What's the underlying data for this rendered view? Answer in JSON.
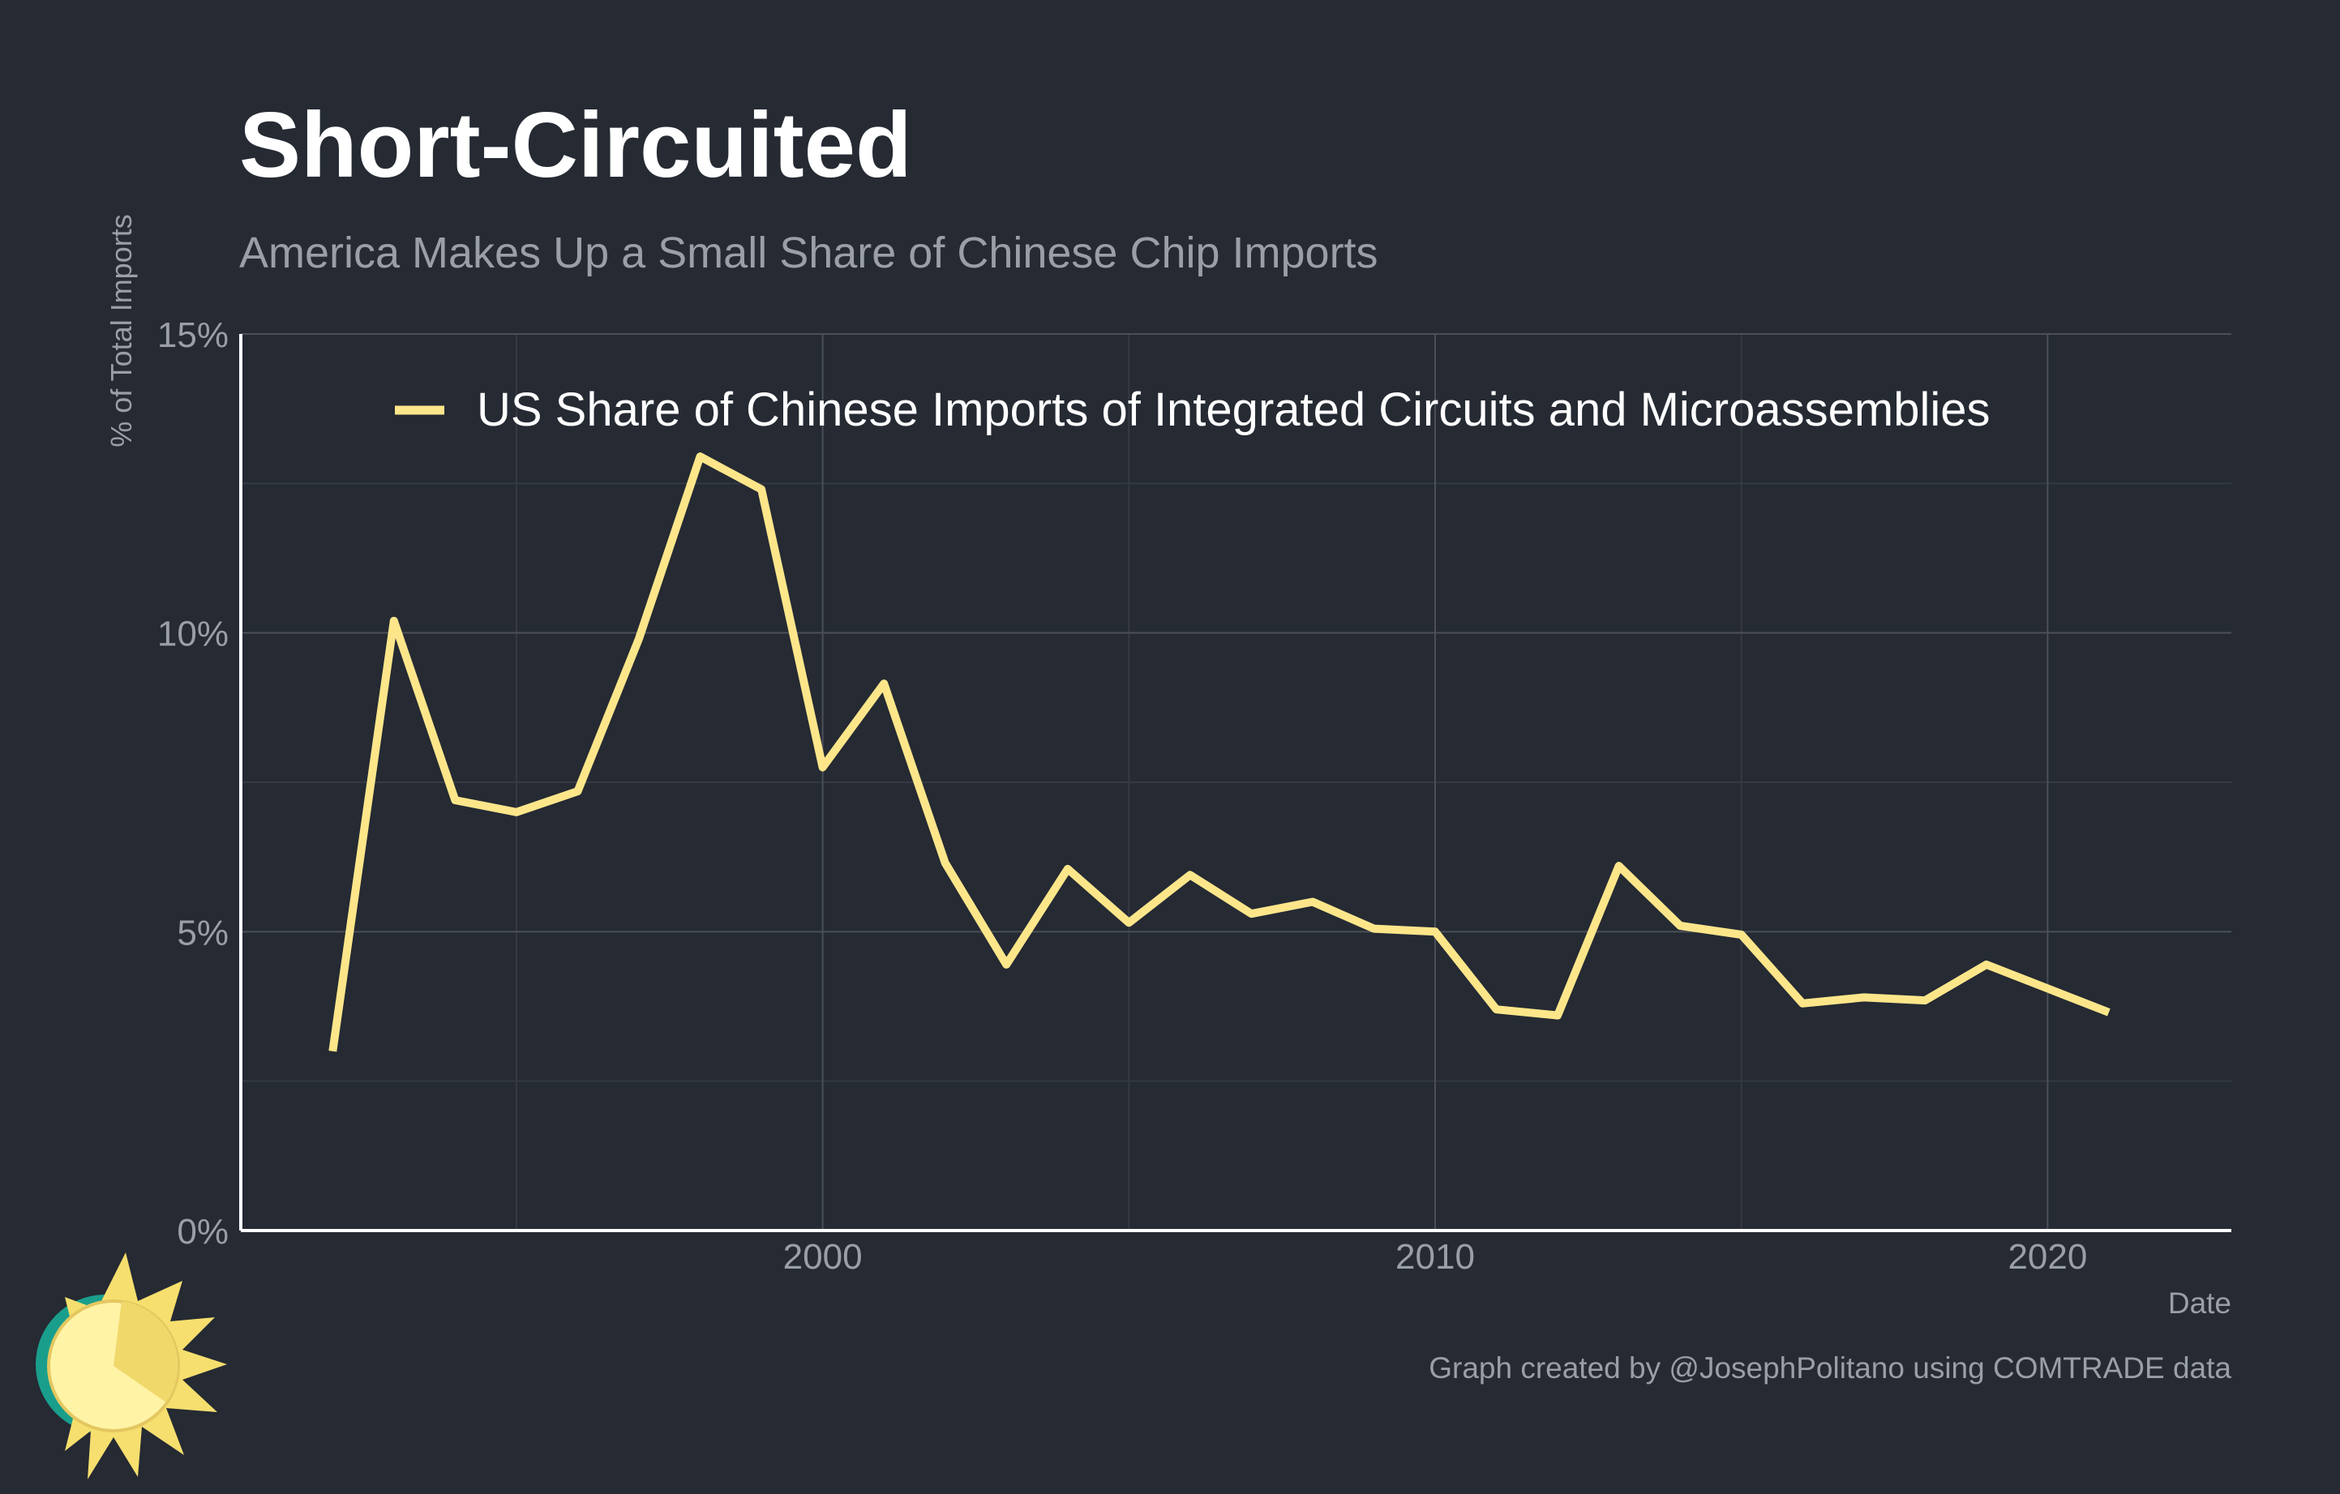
{
  "chart_data": {
    "type": "line",
    "title": "Short-Circuited",
    "subtitle": "America Makes Up a Small Share of Chinese Chip Imports",
    "xlabel": "Date",
    "ylabel": "% of Total Imports",
    "xlim": [
      1990.5,
      2023
    ],
    "ylim": [
      0,
      15
    ],
    "x_ticks": [
      2000,
      2010,
      2020
    ],
    "x_tick_labels": [
      "2000",
      "2010",
      "2020"
    ],
    "y_ticks": [
      0,
      5,
      10,
      15
    ],
    "y_tick_labels": [
      "0%",
      "5%",
      "10%",
      "15%"
    ],
    "grid": true,
    "legend_position": "top",
    "series": [
      {
        "name": "US Share of Chinese Imports of Integrated Circuits and Microassemblies",
        "color": "#fde68a",
        "x": [
          1992,
          1993,
          1994,
          1995,
          1996,
          1997,
          1998,
          1999,
          2000,
          2001,
          2002,
          2003,
          2004,
          2005,
          2006,
          2007,
          2008,
          2009,
          2010,
          2011,
          2012,
          2013,
          2014,
          2015,
          2016,
          2017,
          2018,
          2019,
          2020,
          2021
        ],
        "values": [
          3.0,
          10.2,
          7.2,
          7.0,
          7.35,
          9.9,
          12.95,
          12.4,
          7.75,
          9.15,
          6.15,
          4.45,
          6.05,
          5.15,
          5.95,
          5.3,
          5.5,
          5.05,
          5.0,
          3.7,
          3.6,
          6.1,
          5.1,
          4.95,
          3.8,
          3.9,
          3.85,
          4.45,
          4.05,
          3.65
        ]
      }
    ],
    "caption": "Graph created by @JosephPolitano using COMTRADE data"
  },
  "colors": {
    "background": "#252a33",
    "title": "#ffffff",
    "subtitle": "#9a9ea6",
    "axis_text": "#9a9ea6",
    "legend_text": "#ffffff",
    "grid_major": "#4a4f58",
    "grid_minor": "#353a43",
    "axis_line": "#ffffff"
  },
  "logo": {
    "icon": "sun-logo-icon"
  }
}
